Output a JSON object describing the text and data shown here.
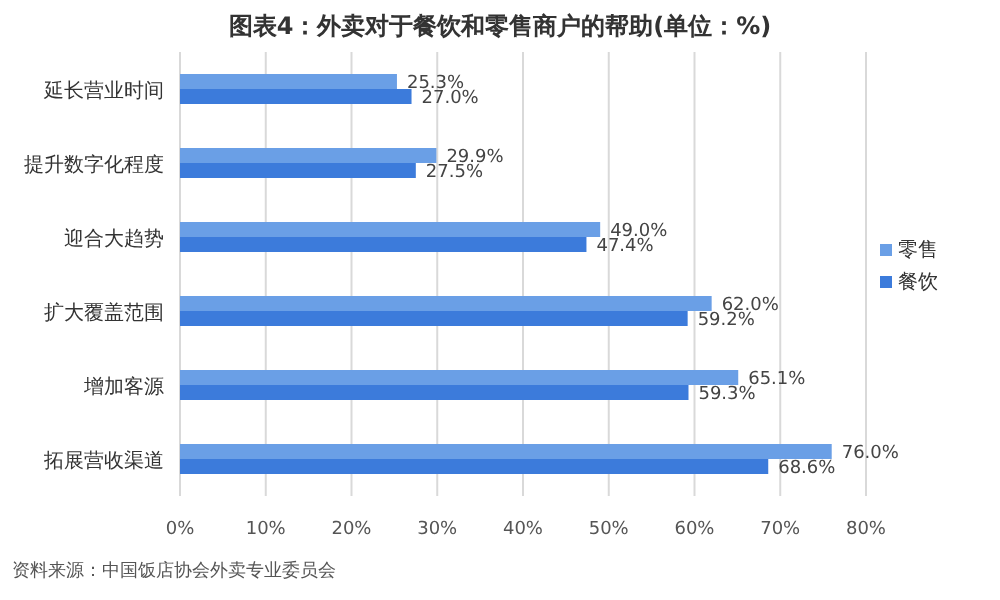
{
  "chart_data": {
    "type": "bar",
    "orientation": "horizontal",
    "title": "图表4：外卖对于餐饮和零售商户的帮助(单位：%)",
    "categories": [
      "延长营业时间",
      "提升数字化程度",
      "迎合大趋势",
      "扩大覆盖范围",
      "增加客源",
      "拓展营收渠道"
    ],
    "series": [
      {
        "name": "零售",
        "color": "#6a9fe6",
        "values": [
          25.3,
          29.9,
          49.0,
          62.0,
          65.1,
          76.0
        ],
        "value_labels": [
          "25.3%",
          "29.9%",
          "49.0%",
          "62.0%",
          "65.1%",
          "76.0%"
        ]
      },
      {
        "name": "餐饮",
        "color": "#3c7bdb",
        "values": [
          27.0,
          27.5,
          47.4,
          59.2,
          59.3,
          68.6
        ],
        "value_labels": [
          "27.0%",
          "27.5%",
          "47.4%",
          "59.2%",
          "59.3%",
          "68.6%"
        ]
      }
    ],
    "xlim": [
      0,
      80
    ],
    "xticks": [
      {
        "value": 0,
        "label": "0%"
      },
      {
        "value": 10,
        "label": "10%"
      },
      {
        "value": 20,
        "label": "20%"
      },
      {
        "value": 30,
        "label": "30%"
      },
      {
        "value": 40,
        "label": "40%"
      },
      {
        "value": 50,
        "label": "50%"
      },
      {
        "value": 60,
        "label": "60%"
      },
      {
        "value": 70,
        "label": "70%"
      },
      {
        "value": 80,
        "label": "80%"
      }
    ],
    "grid": "x",
    "legend": "right",
    "annotations": [
      "资料来源：中国饭店协会外卖专业委员会"
    ]
  }
}
